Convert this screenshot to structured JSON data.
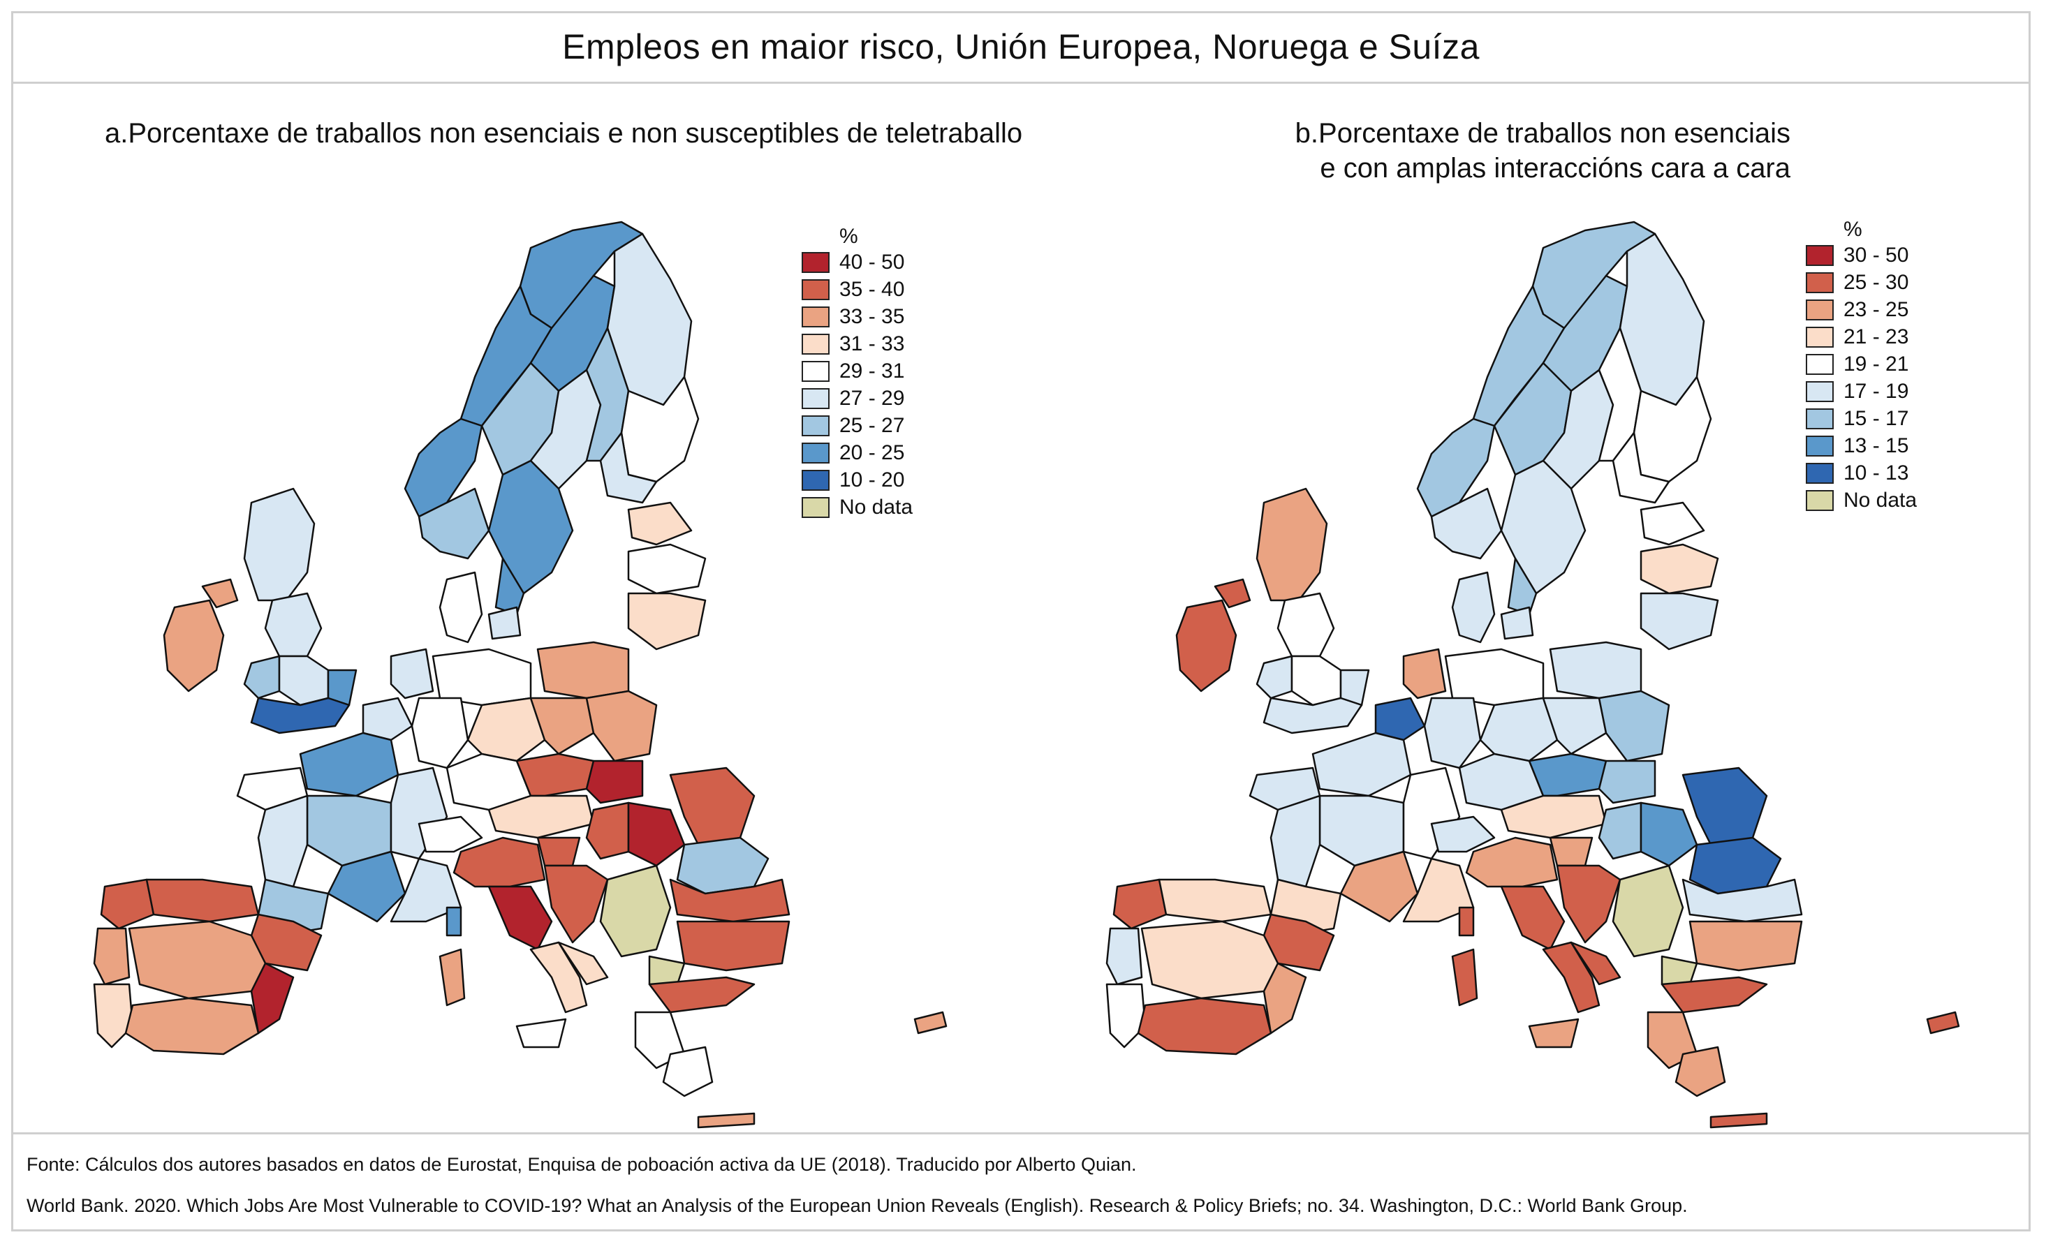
{
  "title": "Empleos en maior risco, Unión Europea, Noruega e Suíza",
  "panels": [
    {
      "title_line1": "a.Porcentaxe de traballos non esenciais e non susceptibles de teletraballo",
      "title_line2": "",
      "legend": {
        "unit": "%",
        "items": [
          {
            "label": "40 - 50",
            "color": "#b2232d"
          },
          {
            "label": "35 - 40",
            "color": "#d1604b"
          },
          {
            "label": "33 - 35",
            "color": "#eaa382"
          },
          {
            "label": "31 - 33",
            "color": "#fbddc9"
          },
          {
            "label": "29 - 31",
            "color": "#ffffff"
          },
          {
            "label": "27 - 29",
            "color": "#d8e7f3"
          },
          {
            "label": "25 - 27",
            "color": "#a2c7e1"
          },
          {
            "label": "20 - 25",
            "color": "#5a98cb"
          },
          {
            "label": "10 - 20",
            "color": "#2f67b1"
          },
          {
            "label": "No data",
            "color": "#d9d8a8"
          }
        ]
      }
    },
    {
      "title_line1": "b.Porcentaxe de traballos non esenciais",
      "title_line2": "e con amplas interaccións cara a cara",
      "legend": {
        "unit": "%",
        "items": [
          {
            "label": "30 - 50",
            "color": "#b2232d"
          },
          {
            "label": "25 - 30",
            "color": "#d1604b"
          },
          {
            "label": "23 - 25",
            "color": "#eaa382"
          },
          {
            "label": "21 - 23",
            "color": "#fbddc9"
          },
          {
            "label": "19 - 21",
            "color": "#ffffff"
          },
          {
            "label": "17 - 19",
            "color": "#d8e7f3"
          },
          {
            "label": "15 - 17",
            "color": "#a2c7e1"
          },
          {
            "label": "13 - 15",
            "color": "#5a98cb"
          },
          {
            "label": "10 - 13",
            "color": "#2f67b1"
          },
          {
            "label": "No data",
            "color": "#d9d8a8"
          }
        ]
      }
    }
  ],
  "footer": {
    "source": "Fonte: Cálculos dos autores basados en datos de Eurostat, Enquisa de poboación activa da UE (2018). Traducido por Alberto Quian.",
    "citation": "World Bank. 2020. Which Jobs Are Most Vulnerable to COVID-19? What an Analysis of the European Union Reveals (English). Research & Policy Briefs; no. 34. Washington, D.C.: World Bank Group."
  }
}
